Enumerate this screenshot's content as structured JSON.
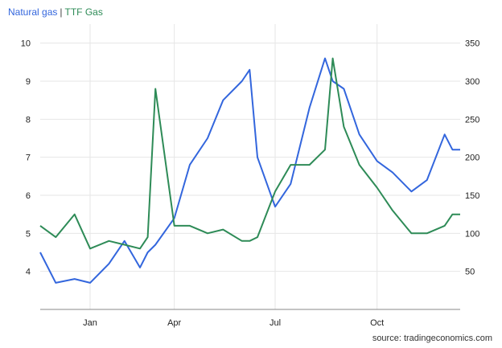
{
  "colors": {
    "natural_gas": "#3366dd",
    "ttf_gas": "#2e8b57",
    "grid": "#e6e6e6",
    "axis": "#888888"
  },
  "legend": {
    "natural_gas": "Natural gas",
    "separator": "|",
    "ttf_gas": "TTF Gas"
  },
  "source": "source: tradingeconomics.com",
  "chart_data": {
    "type": "line",
    "grid": true,
    "legend_position": "top-left",
    "x_ticks": [
      "Jan",
      "Apr",
      "Jul",
      "Oct"
    ],
    "y_left": {
      "ticks": [
        "4",
        "5",
        "6",
        "7",
        "8",
        "9",
        "10"
      ],
      "range": [
        3,
        10.5
      ]
    },
    "y_right": {
      "ticks": [
        "50",
        "100",
        "150",
        "200",
        "250",
        "300",
        "350"
      ],
      "range": [
        0,
        375
      ]
    },
    "x": [
      "2021-12-01",
      "2021-12-15",
      "2022-01-01",
      "2022-01-15",
      "2022-02-01",
      "2022-02-15",
      "2022-03-01",
      "2022-03-08",
      "2022-03-15",
      "2022-04-01",
      "2022-04-15",
      "2022-05-01",
      "2022-05-15",
      "2022-06-01",
      "2022-06-08",
      "2022-06-15",
      "2022-07-01",
      "2022-07-15",
      "2022-08-01",
      "2022-08-15",
      "2022-08-22",
      "2022-09-01",
      "2022-09-15",
      "2022-10-01",
      "2022-10-15",
      "2022-11-01",
      "2022-11-15",
      "2022-12-01",
      "2022-12-08",
      "2022-12-15"
    ],
    "series": [
      {
        "name": "Natural gas",
        "axis": "left",
        "values": [
          4.5,
          3.7,
          3.8,
          3.7,
          4.2,
          4.8,
          4.1,
          4.5,
          4.7,
          5.4,
          6.8,
          7.5,
          8.5,
          9.0,
          9.3,
          7.0,
          5.7,
          6.3,
          8.3,
          9.6,
          9.0,
          8.8,
          7.6,
          6.9,
          6.6,
          6.1,
          6.4,
          7.6,
          7.2,
          7.2
        ],
        "color": "#3366dd"
      },
      {
        "name": "TTF Gas",
        "axis": "right",
        "values": [
          110,
          95,
          125,
          80,
          90,
          85,
          80,
          95,
          290,
          110,
          110,
          100,
          105,
          90,
          90,
          95,
          155,
          190,
          190,
          210,
          330,
          240,
          190,
          160,
          130,
          100,
          100,
          110,
          125,
          125
        ],
        "color": "#2e8b57"
      }
    ]
  }
}
